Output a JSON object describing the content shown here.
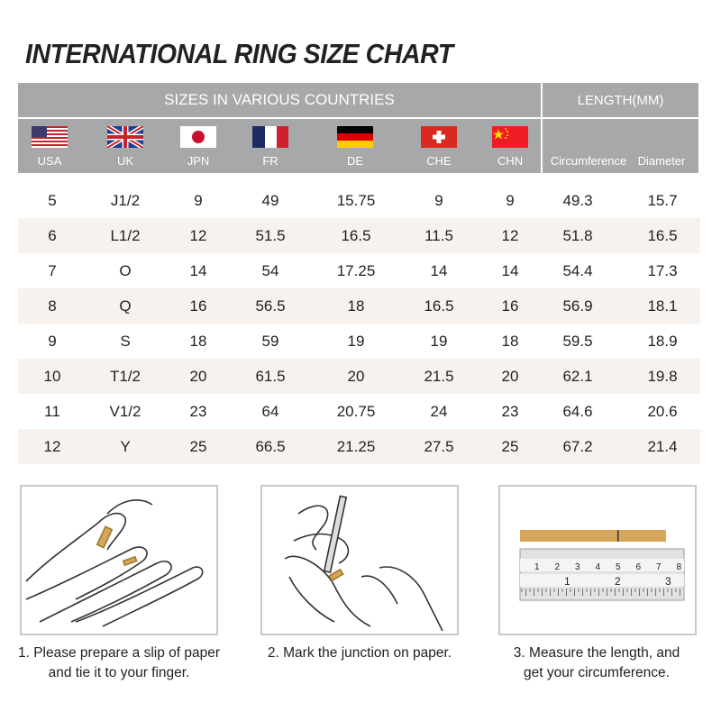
{
  "title": "INTERNATIONAL RING SIZE CHART",
  "header": {
    "sizes_label": "SIZES IN VARIOUS COUNTRIES",
    "length_label": "LENGTH(MM)",
    "columns": [
      "USA",
      "UK",
      "JPN",
      "FR",
      "DE",
      "CHE",
      "CHN",
      "Circumference",
      "Diameter"
    ]
  },
  "rows": [
    [
      "5",
      "J1/2",
      "9",
      "49",
      "15.75",
      "9",
      "9",
      "49.3",
      "15.7"
    ],
    [
      "6",
      "L1/2",
      "12",
      "51.5",
      "16.5",
      "11.5",
      "12",
      "51.8",
      "16.5"
    ],
    [
      "7",
      "O",
      "14",
      "54",
      "17.25",
      "14",
      "14",
      "54.4",
      "17.3"
    ],
    [
      "8",
      "Q",
      "16",
      "56.5",
      "18",
      "16.5",
      "16",
      "56.9",
      "18.1"
    ],
    [
      "9",
      "S",
      "18",
      "59",
      "19",
      "19",
      "18",
      "59.5",
      "18.9"
    ],
    [
      "10",
      "T1/2",
      "20",
      "61.5",
      "20",
      "21.5",
      "20",
      "62.1",
      "19.8"
    ],
    [
      "11",
      "V1/2",
      "23",
      "64",
      "20.75",
      "24",
      "23",
      "64.6",
      "20.6"
    ],
    [
      "12",
      "Y",
      "25",
      "66.5",
      "21.25",
      "27.5",
      "25",
      "67.2",
      "21.4"
    ]
  ],
  "steps": [
    {
      "line1": "1. Please prepare a slip of paper",
      "line2": "and tie it to your finger."
    },
    {
      "line1": "2. Mark the junction on paper.",
      "line2": ""
    },
    {
      "line1": "3. Measure the length, and",
      "line2": "get your circumference."
    }
  ],
  "ruler": {
    "top": [
      "1",
      "2",
      "3",
      "4",
      "5",
      "6",
      "7",
      "8"
    ],
    "bottom": [
      "1",
      "2",
      "3"
    ]
  },
  "colors": {
    "header": "#a7a8aa",
    "row_alt": "#f7f2ed",
    "paper": "#d6a75a"
  }
}
